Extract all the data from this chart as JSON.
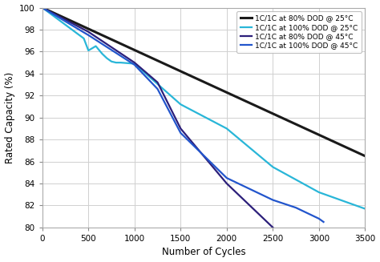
{
  "title": "",
  "xlabel": "Number of Cycles",
  "ylabel": "Rated Capacity (%)",
  "xlim": [
    0,
    3500
  ],
  "ylim": [
    80,
    100
  ],
  "yticks": [
    80,
    82,
    84,
    86,
    88,
    90,
    92,
    94,
    96,
    98,
    100
  ],
  "xticks": [
    0,
    500,
    1000,
    1500,
    2000,
    2500,
    3000,
    3500
  ],
  "background_color": "#ffffff",
  "series": [
    {
      "label": "1C/1C at 80% DOD @ 25°C",
      "color": "#1a1a1a",
      "linewidth": 2.2,
      "x": [
        0,
        3500
      ],
      "y": [
        100,
        86.5
      ]
    },
    {
      "label": "1C/1C at 100% DOD @ 25°C",
      "color": "#29b6d8",
      "linewidth": 1.6,
      "x": [
        0,
        450,
        500,
        580,
        650,
        700,
        750,
        800,
        850,
        1000,
        1500,
        2000,
        2500,
        3000,
        3500
      ],
      "y": [
        100,
        97.2,
        96.1,
        96.5,
        95.8,
        95.4,
        95.1,
        95.0,
        95.0,
        94.9,
        91.2,
        89.0,
        85.5,
        83.2,
        81.7
      ]
    },
    {
      "label": "1C/1C at 80% DOD @ 45°C",
      "color": "#2c1f7a",
      "linewidth": 1.6,
      "x": [
        0,
        500,
        1000,
        1250,
        1500,
        2000,
        2500
      ],
      "y": [
        100,
        97.8,
        95.0,
        93.2,
        89.0,
        84.0,
        80.0
      ]
    },
    {
      "label": "1C/1C at 100% DOD @ 45°C",
      "color": "#2255cc",
      "linewidth": 1.6,
      "x": [
        0,
        500,
        1000,
        1250,
        1500,
        2000,
        2500,
        2750,
        3000,
        3050
      ],
      "y": [
        100,
        97.5,
        94.8,
        92.6,
        88.6,
        84.5,
        82.5,
        81.8,
        80.8,
        80.5
      ]
    }
  ],
  "legend_loc": "upper right",
  "grid_color": "#d0d0d0",
  "tick_fontsize": 7.5,
  "label_fontsize": 8.5
}
